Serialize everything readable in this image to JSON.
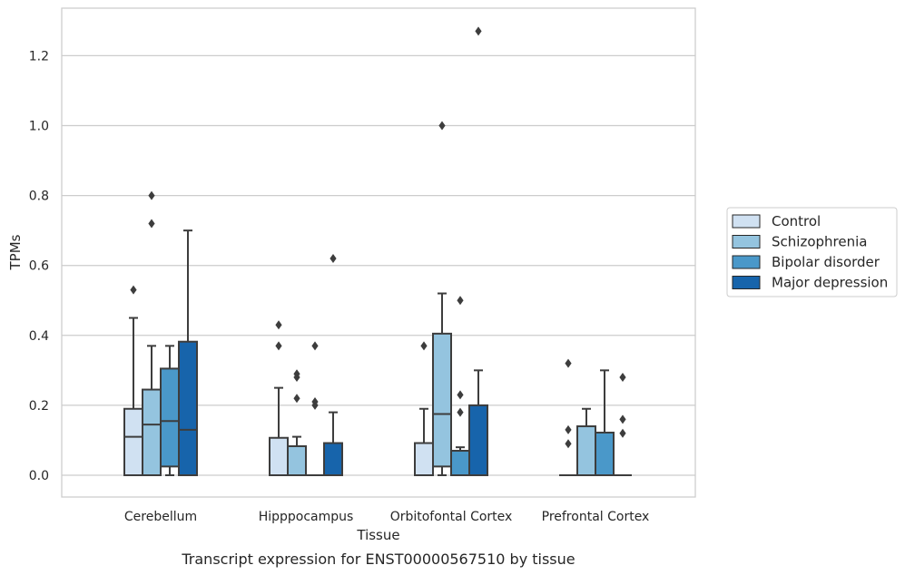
{
  "caption": "Transcript expression for ENST00000567510 by tissue",
  "chart_data": {
    "type": "box",
    "xlabel": "Tissue",
    "ylabel": "TPMs",
    "ylim": [
      -0.06,
      1.34
    ],
    "yticks": [
      0.0,
      0.2,
      0.4,
      0.6,
      0.8,
      1.0,
      1.2
    ],
    "ytick_labels": [
      "0.0",
      "0.2",
      "0.4",
      "0.6",
      "0.8",
      "1.0",
      "1.2"
    ],
    "grid": "horizontal",
    "legend_position": "right",
    "categories": [
      "Cerebellum",
      "Hipppocampus",
      "Orbitofontal Cortex",
      "Prefrontal Cortex"
    ],
    "series": [
      {
        "name": "Control",
        "color": "#d0e1f2",
        "boxes": [
          {
            "q1": 0.0,
            "median": 0.11,
            "q3": 0.19,
            "whislo": 0.0,
            "whishi": 0.45,
            "fliers": [
              0.53
            ]
          },
          {
            "q1": 0.0,
            "median": 0.0,
            "q3": 0.107,
            "whislo": 0.0,
            "whishi": 0.25,
            "fliers": [
              0.37,
              0.43
            ]
          },
          {
            "q1": 0.0,
            "median": 0.0,
            "q3": 0.092,
            "whislo": 0.0,
            "whishi": 0.19,
            "fliers": [
              0.37
            ]
          },
          {
            "q1": 0.0,
            "median": 0.0,
            "q3": 0.0,
            "whislo": 0.0,
            "whishi": 0.0,
            "fliers": [
              0.09,
              0.13,
              0.32
            ]
          }
        ]
      },
      {
        "name": "Schizophrenia",
        "color": "#94c4df",
        "boxes": [
          {
            "q1": 0.0,
            "median": 0.145,
            "q3": 0.245,
            "whislo": 0.0,
            "whishi": 0.37,
            "fliers": [
              0.72,
              0.8
            ]
          },
          {
            "q1": 0.0,
            "median": 0.0,
            "q3": 0.083,
            "whislo": 0.0,
            "whishi": 0.11,
            "fliers": [
              0.22,
              0.28,
              0.29
            ]
          },
          {
            "q1": 0.025,
            "median": 0.175,
            "q3": 0.405,
            "whislo": 0.0,
            "whishi": 0.52,
            "fliers": [
              1.0
            ]
          },
          {
            "q1": 0.0,
            "median": 0.0,
            "q3": 0.14,
            "whislo": 0.0,
            "whishi": 0.19,
            "fliers": []
          }
        ]
      },
      {
        "name": "Bipolar disorder",
        "color": "#4a98c9",
        "boxes": [
          {
            "q1": 0.025,
            "median": 0.155,
            "q3": 0.305,
            "whislo": 0.0,
            "whishi": 0.37,
            "fliers": []
          },
          {
            "q1": 0.0,
            "median": 0.0,
            "q3": 0.0,
            "whislo": 0.0,
            "whishi": 0.0,
            "fliers": [
              0.2,
              0.21,
              0.37
            ]
          },
          {
            "q1": 0.0,
            "median": 0.07,
            "q3": 0.07,
            "whislo": 0.0,
            "whishi": 0.08,
            "fliers": [
              0.18,
              0.23,
              0.5
            ]
          },
          {
            "q1": 0.0,
            "median": 0.0,
            "q3": 0.122,
            "whislo": 0.0,
            "whishi": 0.3,
            "fliers": []
          }
        ]
      },
      {
        "name": "Major depression",
        "color": "#1764ab",
        "boxes": [
          {
            "q1": 0.0,
            "median": 0.13,
            "q3": 0.382,
            "whislo": 0.0,
            "whishi": 0.7,
            "fliers": []
          },
          {
            "q1": 0.0,
            "median": 0.0,
            "q3": 0.092,
            "whislo": 0.0,
            "whishi": 0.18,
            "fliers": [
              0.62
            ]
          },
          {
            "q1": 0.0,
            "median": 0.0,
            "q3": 0.2,
            "whislo": 0.0,
            "whishi": 0.3,
            "fliers": [
              1.27
            ]
          },
          {
            "q1": 0.0,
            "median": 0.0,
            "q3": 0.0,
            "whislo": 0.0,
            "whishi": 0.0,
            "fliers": [
              0.12,
              0.16,
              0.28
            ]
          }
        ]
      }
    ]
  }
}
